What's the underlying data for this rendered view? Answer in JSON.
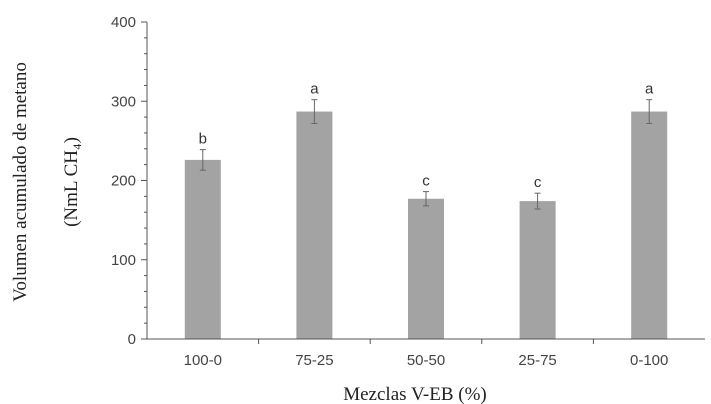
{
  "chart_data": {
    "type": "bar",
    "xlabel": "Mezclas V-EB (%)",
    "ylabel_line1": "Volumen acumulado de metano",
    "ylabel_line2": "(NmL CH₄)",
    "ylim": [
      0,
      400
    ],
    "yticks": [
      0,
      100,
      200,
      300,
      400
    ],
    "y_minor_step": 20,
    "categories": [
      "100-0",
      "75-25",
      "50-50",
      "25-75",
      "0-100"
    ],
    "values": [
      226,
      287,
      177,
      174,
      287
    ],
    "errors": [
      13,
      15,
      9,
      10,
      15
    ],
    "significance": [
      "b",
      "a",
      "c",
      "c",
      "a"
    ],
    "bar_color": "#a3a3a3",
    "grid": false,
    "legend": "none"
  }
}
